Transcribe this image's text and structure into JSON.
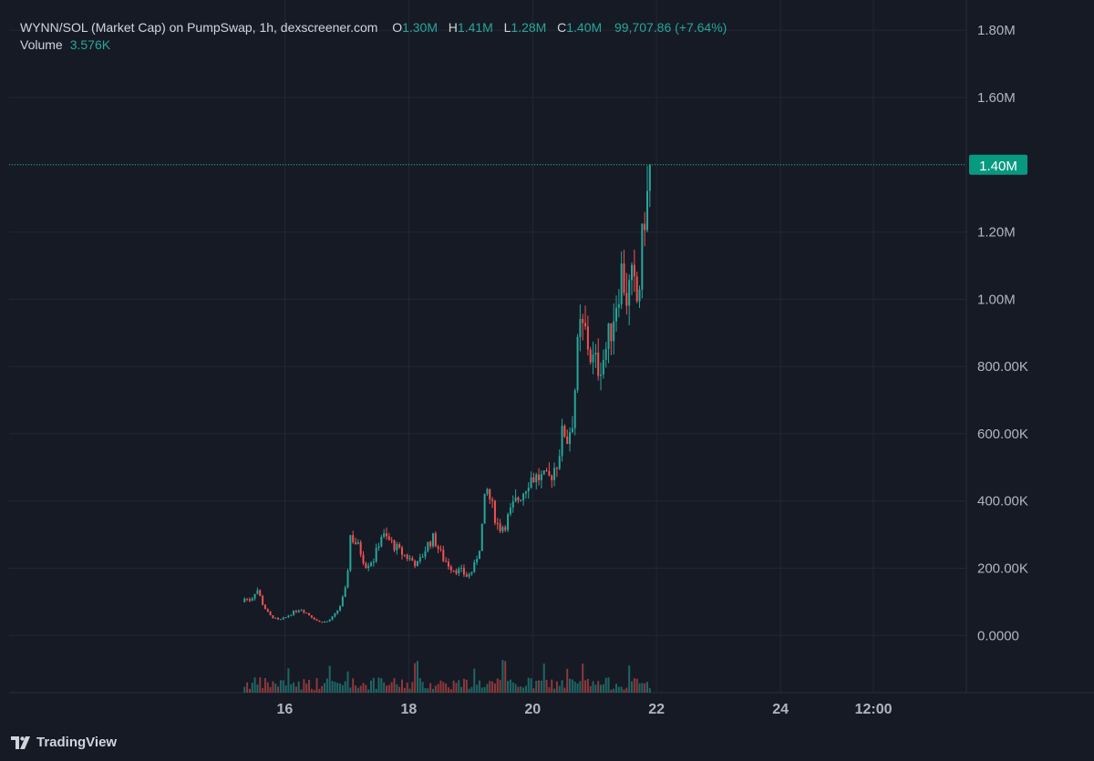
{
  "header": {
    "symbol": "WYNN/SOL (Market Cap) on PumpSwap, 1h, dexscreener.com",
    "o_label": "O",
    "o_value": "1.30M",
    "h_label": "H",
    "h_value": "1.41M",
    "l_label": "L",
    "l_value": "1.28M",
    "c_label": "C",
    "c_value": "1.40M",
    "change": "99,707.86 (+7.64%)",
    "volume_label": "Volume",
    "volume_value": "3.576K"
  },
  "last_price_label": "1.40M",
  "brand": "TradingView",
  "colors": {
    "up": "#26a69a",
    "down": "#ef5350",
    "background": "#161a25",
    "grid": "#232733",
    "text": "#d1d4dc",
    "price_tag": "#089981"
  },
  "chart_data": {
    "type": "candlestick",
    "title": "WYNN/SOL (Market Cap) on PumpSwap, 1h, dexscreener.com",
    "y_ticks": [
      "1.80M",
      "1.60M",
      "1.40M",
      "1.20M",
      "1.00M",
      "800.00K",
      "600.00K",
      "400.00K",
      "200.00K",
      "0.0000"
    ],
    "y_tick_values": [
      1800000,
      1600000,
      1400000,
      1200000,
      1000000,
      800000,
      600000,
      400000,
      200000,
      0
    ],
    "ylim": [
      -170000,
      1890000
    ],
    "x_ticks": [
      "16",
      "18",
      "20",
      "22",
      "24",
      "12:00"
    ],
    "x_tick_positions_day": [
      16,
      18,
      20,
      22,
      24,
      25.5
    ],
    "xlim_day": [
      11.55,
      27.0
    ],
    "last_price": 1400000,
    "close_path": [
      [
        15.35,
        110000
      ],
      [
        15.45,
        105000
      ],
      [
        15.55,
        140000
      ],
      [
        15.65,
        90000
      ],
      [
        15.75,
        60000
      ],
      [
        15.9,
        45000
      ],
      [
        16.0,
        52000
      ],
      [
        16.1,
        65000
      ],
      [
        16.25,
        80000
      ],
      [
        16.4,
        60000
      ],
      [
        16.55,
        40000
      ],
      [
        16.7,
        42000
      ],
      [
        16.8,
        60000
      ],
      [
        16.9,
        90000
      ],
      [
        17.0,
        150000
      ],
      [
        17.05,
        300000
      ],
      [
        17.2,
        260000
      ],
      [
        17.3,
        210000
      ],
      [
        17.45,
        230000
      ],
      [
        17.55,
        300000
      ],
      [
        17.7,
        280000
      ],
      [
        17.85,
        250000
      ],
      [
        18.0,
        230000
      ],
      [
        18.15,
        210000
      ],
      [
        18.3,
        270000
      ],
      [
        18.4,
        290000
      ],
      [
        18.55,
        230000
      ],
      [
        18.7,
        200000
      ],
      [
        18.85,
        190000
      ],
      [
        18.95,
        175000
      ],
      [
        19.05,
        200000
      ],
      [
        19.15,
        270000
      ],
      [
        19.25,
        440000
      ],
      [
        19.35,
        380000
      ],
      [
        19.45,
        320000
      ],
      [
        19.55,
        330000
      ],
      [
        19.7,
        390000
      ],
      [
        19.85,
        430000
      ],
      [
        19.95,
        470000
      ],
      [
        20.1,
        470000
      ],
      [
        20.25,
        460000
      ],
      [
        20.4,
        520000
      ],
      [
        20.5,
        620000
      ],
      [
        20.55,
        580000
      ],
      [
        20.65,
        650000
      ],
      [
        20.75,
        910000
      ],
      [
        20.85,
        900000
      ],
      [
        20.95,
        820000
      ],
      [
        21.05,
        800000
      ],
      [
        21.15,
        830000
      ],
      [
        21.25,
        900000
      ],
      [
        21.35,
        1000000
      ],
      [
        21.45,
        1100000
      ],
      [
        21.5,
        1000000
      ],
      [
        21.6,
        1050000
      ],
      [
        21.7,
        980000
      ],
      [
        21.8,
        1250000
      ],
      [
        21.85,
        1300000
      ],
      [
        21.9,
        1400000
      ]
    ]
  }
}
